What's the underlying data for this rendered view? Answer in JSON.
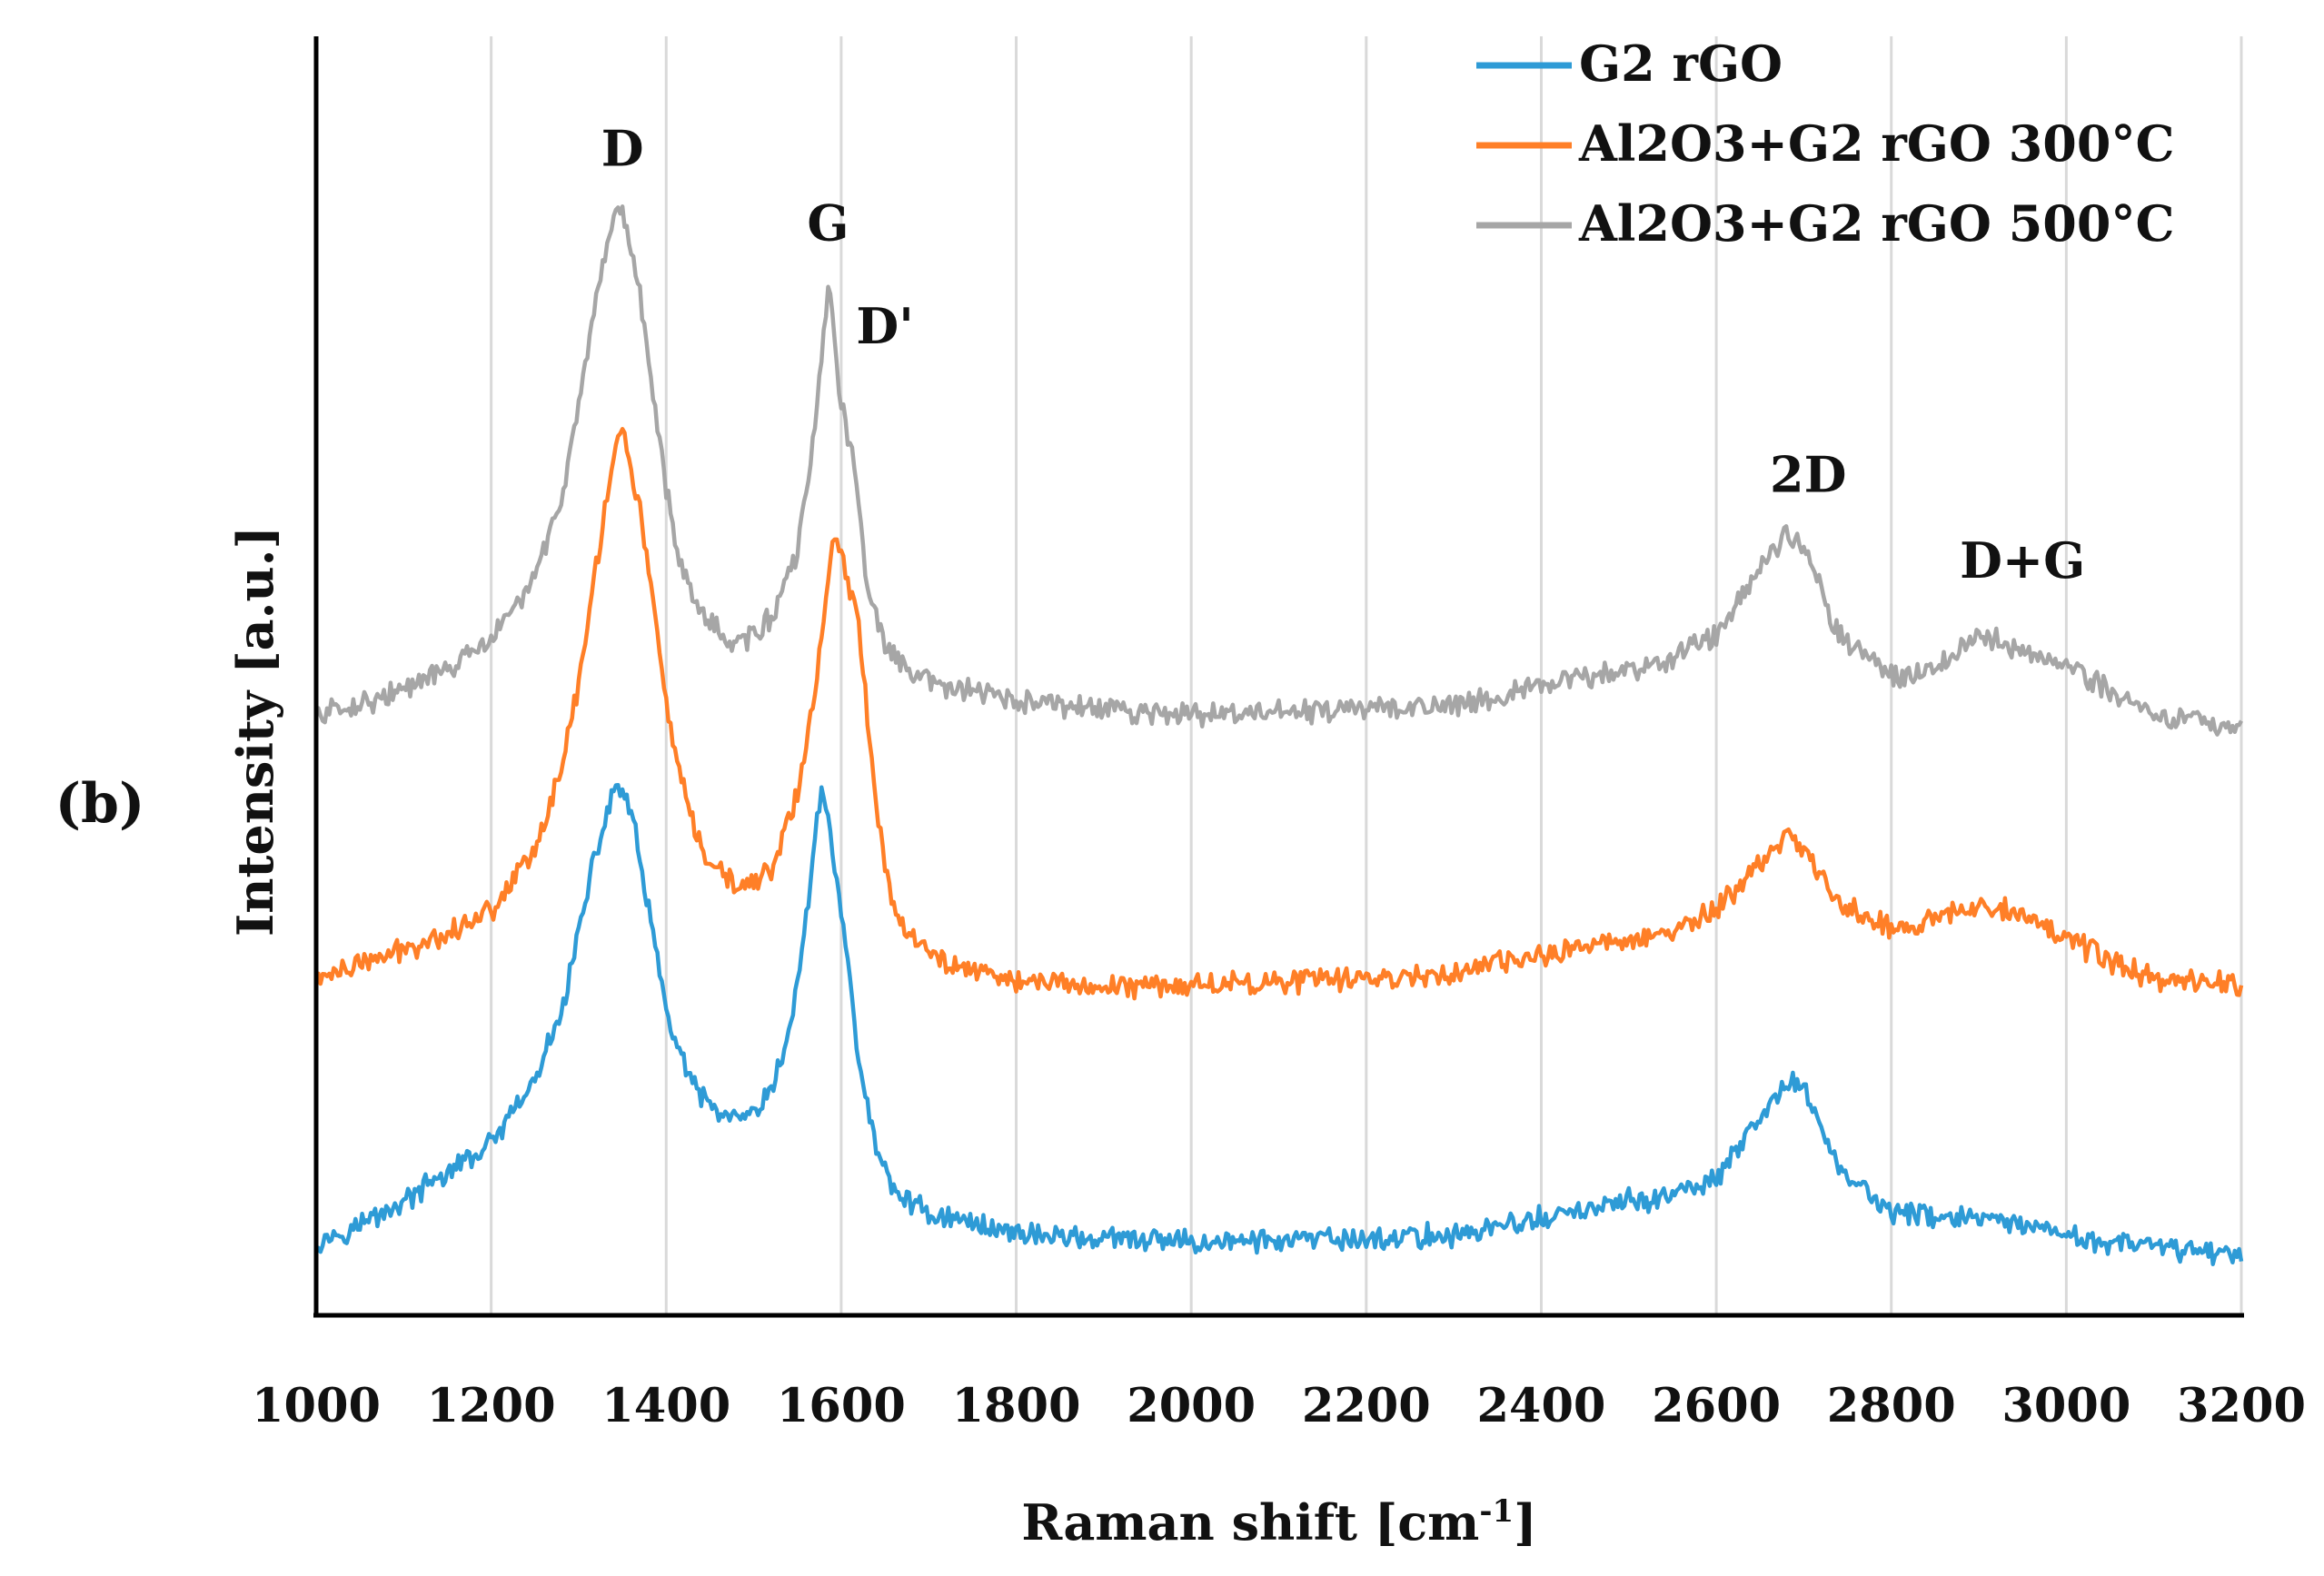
{
  "panel_label": "(b)",
  "chart_data": {
    "type": "line",
    "title": "",
    "xlabel": "Raman shift [cm-1]",
    "xlabel_parts": {
      "main": "Raman shift [cm",
      "sup": "-1",
      "close": "]"
    },
    "ylabel": "Intensity [a.u.]",
    "xlim": [
      1000,
      3200
    ],
    "ylim": [
      0,
      10
    ],
    "grid": {
      "vertical": true,
      "horizontal": false
    },
    "x_ticks": [
      "1000",
      "1200",
      "1400",
      "1600",
      "1800",
      "2000",
      "2200",
      "2400",
      "2600",
      "2800",
      "3000",
      "3200"
    ],
    "x_tick_values": [
      1000,
      1200,
      1400,
      1600,
      1800,
      2000,
      2200,
      2400,
      2600,
      2800,
      3000,
      3200
    ],
    "legend_position": "top-right",
    "series": [
      {
        "name": "G2 rGO",
        "color": "#2E9BD6",
        "x": [
          1000,
          1050,
          1100,
          1150,
          1200,
          1250,
          1280,
          1300,
          1320,
          1340,
          1345,
          1360,
          1380,
          1400,
          1430,
          1460,
          1480,
          1500,
          1520,
          1540,
          1560,
          1578,
          1600,
          1620,
          1640,
          1660,
          1700,
          1800,
          1900,
          2000,
          2200,
          2300,
          2400,
          2500,
          2550,
          2600,
          2650,
          2680,
          2700,
          2740,
          2800,
          2900,
          3000,
          3100,
          3200
        ],
        "y": [
          0.5,
          0.65,
          0.85,
          1.1,
          1.35,
          1.9,
          2.5,
          3.2,
          3.9,
          4.45,
          4.5,
          4.25,
          3.4,
          2.5,
          1.85,
          1.62,
          1.55,
          1.6,
          1.8,
          2.3,
          3.3,
          4.55,
          3.4,
          2.1,
          1.3,
          0.95,
          0.75,
          0.58,
          0.52,
          0.5,
          0.52,
          0.56,
          0.7,
          0.85,
          0.9,
          1.05,
          1.55,
          1.9,
          1.85,
          1.15,
          0.75,
          0.7,
          0.55,
          0.45,
          0.4
        ]
      },
      {
        "name": "Al2O3+G2 rGO 300°C",
        "color": "#FF7F27",
        "x": [
          1000,
          1050,
          1100,
          1150,
          1200,
          1250,
          1280,
          1300,
          1320,
          1340,
          1350,
          1370,
          1390,
          1410,
          1440,
          1470,
          1490,
          1520,
          1550,
          1570,
          1590,
          1600,
          1620,
          1640,
          1660,
          1700,
          1800,
          1900,
          2000,
          2200,
          2300,
          2400,
          2500,
          2550,
          2600,
          2650,
          2680,
          2700,
          2740,
          2800,
          2850,
          2900,
          2940,
          3000,
          3050,
          3100,
          3200
        ],
        "y": [
          2.8,
          2.92,
          3.05,
          3.2,
          3.4,
          3.95,
          4.6,
          5.4,
          6.4,
          7.4,
          7.6,
          6.9,
          5.8,
          4.7,
          3.9,
          3.65,
          3.6,
          3.75,
          4.4,
          5.3,
          6.6,
          6.5,
          5.9,
          4.3,
          3.4,
          3.0,
          2.78,
          2.73,
          2.75,
          2.8,
          2.85,
          3.0,
          3.15,
          3.2,
          3.4,
          3.8,
          4.05,
          3.95,
          3.45,
          3.25,
          3.3,
          3.45,
          3.42,
          3.15,
          2.95,
          2.8,
          2.75
        ]
      },
      {
        "name": "Al2O3+G2 rGO 500°C",
        "color": "#A6A6A6",
        "x": [
          1000,
          1050,
          1100,
          1150,
          1200,
          1250,
          1280,
          1300,
          1320,
          1340,
          1350,
          1370,
          1390,
          1410,
          1440,
          1470,
          1490,
          1520,
          1550,
          1570,
          1585,
          1600,
          1615,
          1630,
          1650,
          1680,
          1720,
          1800,
          1900,
          2000,
          2200,
          2300,
          2400,
          2500,
          2550,
          2600,
          2650,
          2680,
          2700,
          2740,
          2800,
          2850,
          2900,
          2940,
          3000,
          3050,
          3100,
          3200
        ],
        "y": [
          5.1,
          5.2,
          5.32,
          5.5,
          5.75,
          6.3,
          7.0,
          7.8,
          8.7,
          9.4,
          9.5,
          8.8,
          7.6,
          6.6,
          6.0,
          5.75,
          5.75,
          5.95,
          6.5,
          7.6,
          8.9,
          7.8,
          7.3,
          6.2,
          5.7,
          5.45,
          5.35,
          5.22,
          5.15,
          5.1,
          5.15,
          5.2,
          5.35,
          5.5,
          5.6,
          5.8,
          6.4,
          6.7,
          6.6,
          5.8,
          5.45,
          5.5,
          5.8,
          5.7,
          5.55,
          5.3,
          5.1,
          5.0
        ]
      }
    ],
    "annotations": [
      {
        "text": "D",
        "x": 1350,
        "y": 9.9
      },
      {
        "text": "G",
        "x": 1585,
        "y": 9.25
      },
      {
        "text": "D'",
        "x": 1650,
        "y": 8.35
      },
      {
        "text": "2D",
        "x": 2705,
        "y": 7.05
      },
      {
        "text": "D+G",
        "x": 2950,
        "y": 6.3
      }
    ]
  }
}
